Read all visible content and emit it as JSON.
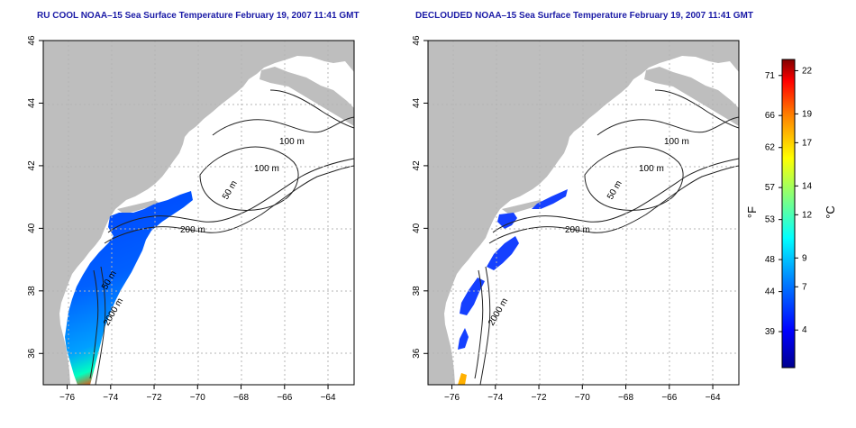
{
  "titles": {
    "left": "RU COOL NOAA–15 Sea Surface Temperature February 19, 2007 11:41 GMT",
    "right": "DECLOUDED NOAA–15 Sea Surface Temperature February 19, 2007 11:41 GMT"
  },
  "axes": {
    "lon_ticks": [
      -76,
      -74,
      -72,
      -70,
      -68,
      -66,
      -64
    ],
    "lat_ticks": [
      36,
      38,
      40,
      42,
      44,
      46
    ],
    "lon_labels": [
      "−76",
      "−74",
      "−72",
      "−70",
      "−68",
      "−66",
      "−64"
    ],
    "lat_labels": [
      "36",
      "38",
      "40",
      "42",
      "44",
      "46"
    ],
    "lon_range": [
      -77.1,
      -62.8
    ],
    "lat_range": [
      35,
      46
    ]
  },
  "contour_labels": [
    "100 m",
    "100 m",
    "50 m",
    "200 m",
    "50 m",
    "2000 m"
  ],
  "colorbar": {
    "fahrenheit_ticks": [
      "71",
      "66",
      "62",
      "57",
      "53",
      "48",
      "44",
      "39"
    ],
    "celsius_ticks": [
      "22",
      "19",
      "17",
      "14",
      "12",
      "9",
      "7",
      "4"
    ],
    "fahrenheit_unit": "°F",
    "celsius_unit": "°C",
    "colors": [
      "#00008f",
      "#0000ff",
      "#0080ff",
      "#00ffff",
      "#80ff80",
      "#ffff00",
      "#ff8000",
      "#ff0000",
      "#800000"
    ]
  },
  "colors": {
    "land": "#bebebe",
    "water": "#ffffff",
    "title": "#1a1aa6"
  }
}
